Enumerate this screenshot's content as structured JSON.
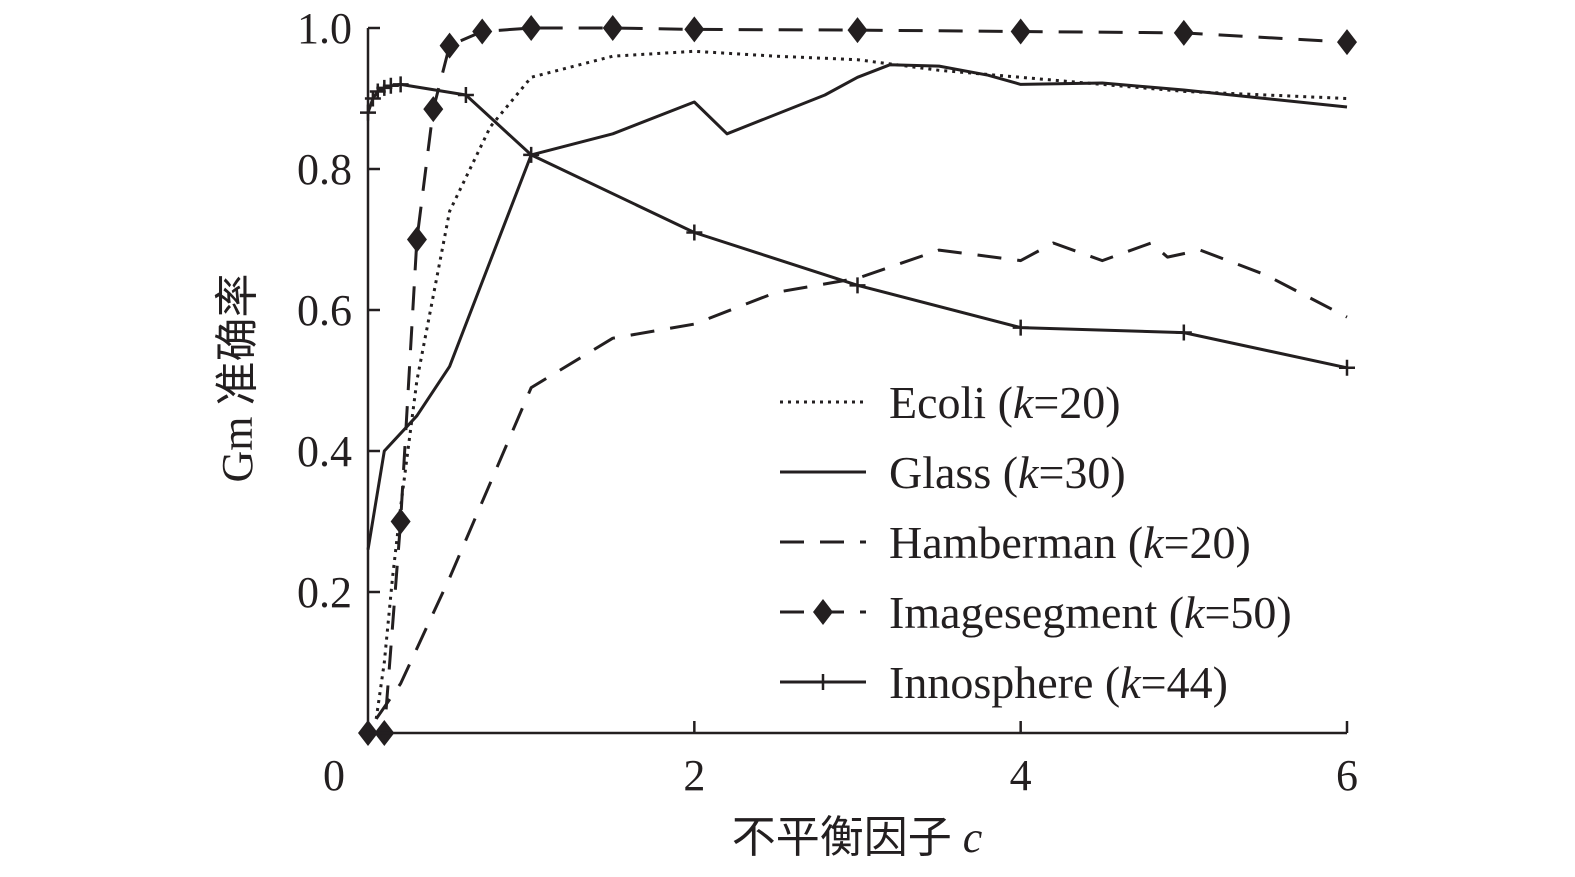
{
  "chart_data": {
    "type": "line",
    "title": "",
    "xlabel": "不平衡因子",
    "xlabel_var": "c",
    "ylabel": "Gm 准确率",
    "xlim": [
      0,
      6
    ],
    "ylim": [
      0,
      1.0
    ],
    "x_ticks": [
      "0",
      "2",
      "4",
      "6"
    ],
    "y_ticks": [
      "0.2",
      "0.4",
      "0.6",
      "0.8",
      "1.0"
    ],
    "legend_position": "bottom-right",
    "grid": false,
    "series": [
      {
        "name": "Ecoli",
        "k_label": "k",
        "k_value": "=20)",
        "line_style": "dotted",
        "marker": "none",
        "x": [
          0.05,
          0.1,
          0.15,
          0.2,
          0.3,
          0.5,
          0.75,
          1.0,
          1.5,
          2.0,
          2.5,
          3.0,
          3.5,
          4.0,
          4.5,
          5.0,
          6.0
        ],
        "y": [
          0.02,
          0.1,
          0.22,
          0.32,
          0.5,
          0.74,
          0.86,
          0.93,
          0.96,
          0.967,
          0.96,
          0.955,
          0.94,
          0.93,
          0.92,
          0.91,
          0.9
        ]
      },
      {
        "name": "Glass",
        "k_label": "k",
        "k_value": "=30)",
        "line_style": "solid",
        "marker": "none",
        "x": [
          0.0,
          0.1,
          0.3,
          0.5,
          1.0,
          1.5,
          2.0,
          2.2,
          2.8,
          3.0,
          3.2,
          3.5,
          3.8,
          4.0,
          4.5,
          5.0,
          6.0
        ],
        "y": [
          0.26,
          0.4,
          0.45,
          0.52,
          0.82,
          0.85,
          0.895,
          0.85,
          0.905,
          0.93,
          0.948,
          0.946,
          0.933,
          0.92,
          0.922,
          0.912,
          0.888
        ]
      },
      {
        "name": "Hamberman",
        "k_label": "k",
        "k_value": "=20)",
        "line_style": "dashed",
        "marker": "none",
        "x": [
          0.05,
          0.2,
          0.5,
          1.0,
          1.5,
          2.0,
          2.5,
          3.0,
          3.5,
          4.0,
          4.2,
          4.5,
          4.8,
          4.9,
          5.0,
          5.1,
          5.5,
          6.0
        ],
        "y": [
          0.02,
          0.07,
          0.22,
          0.49,
          0.56,
          0.58,
          0.625,
          0.645,
          0.685,
          0.67,
          0.695,
          0.67,
          0.695,
          0.675,
          0.68,
          0.685,
          0.65,
          0.59
        ]
      },
      {
        "name": "Imagesegment",
        "k_label": "k",
        "k_value": "=50)",
        "line_style": "dashed",
        "marker": "diamond",
        "x": [
          0.0,
          0.1,
          0.2,
          0.3,
          0.4,
          0.5,
          0.7,
          1.0,
          1.5,
          2.0,
          3.0,
          4.0,
          5.0,
          6.0
        ],
        "y": [
          0.0,
          0.0,
          0.3,
          0.7,
          0.885,
          0.975,
          0.995,
          1.0,
          1.0,
          0.998,
          0.997,
          0.995,
          0.993,
          0.98
        ]
      },
      {
        "name": "Innosphere",
        "k_label": "k",
        "k_value": "=44)",
        "line_style": "solid",
        "marker": "plus",
        "x": [
          0.0,
          0.03,
          0.06,
          0.1,
          0.14,
          0.2,
          0.6,
          1.0,
          2.0,
          3.0,
          4.0,
          5.0,
          6.0
        ],
        "y": [
          0.88,
          0.9,
          0.91,
          0.915,
          0.918,
          0.92,
          0.905,
          0.82,
          0.71,
          0.635,
          0.575,
          0.568,
          0.518
        ]
      }
    ]
  }
}
